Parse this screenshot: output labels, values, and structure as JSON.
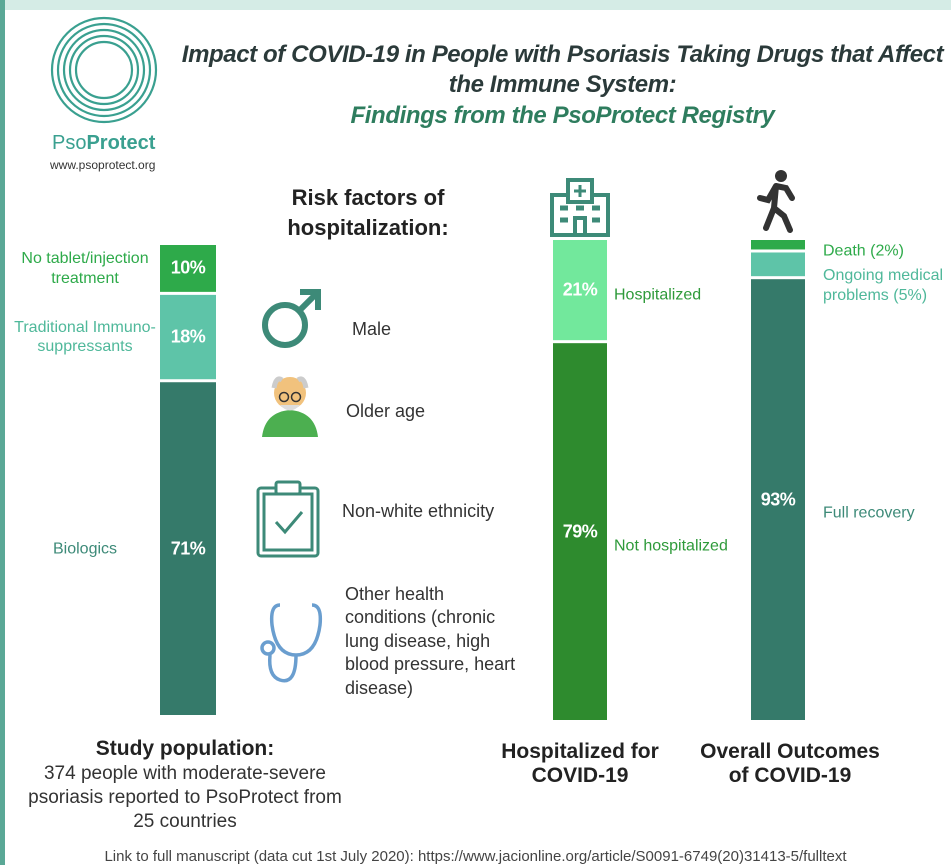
{
  "header": {
    "logo_name_light": "Pso",
    "logo_name_bold": "Protect",
    "url": "www.psoprotect.org",
    "title": "Impact of COVID-19 in People with Psoriasis Taking Drugs that Affect the Immune System:",
    "subtitle": "Findings from the PsoProtect Registry"
  },
  "risk_factors": {
    "title": "Risk factors of hospitalization:",
    "items": [
      "Male",
      "Older age",
      "Non-white ethnicity",
      "Other health conditions (chronic lung disease, high blood pressure, heart disease)"
    ]
  },
  "chart_data": [
    {
      "type": "stacked_bar",
      "title": "Study population:",
      "subtitle": "374 people with moderate-severe psoriasis reported to PsoProtect from 25 countries",
      "series": [
        {
          "name": "No tablet/injection treatment",
          "color": "#2eaa4a",
          "label_color": "#2eaa4a",
          "values": [
            10
          ],
          "value_labels": [
            "10%"
          ]
        },
        {
          "name": "Traditional Immuno-suppressants",
          "color": "#5ec4a8",
          "label_color": "#4fb89a",
          "values": [
            18
          ],
          "value_labels": [
            "18%"
          ]
        },
        {
          "name": "Biologics",
          "color": "#357a6a",
          "label_color": "#3d8a78",
          "values": [
            71
          ],
          "value_labels": [
            "71%"
          ]
        }
      ]
    },
    {
      "type": "stacked_bar",
      "title": "Hospitalized for COVID-19",
      "series": [
        {
          "name": "Hospitalized",
          "color": "#72e89c",
          "label_color": "#2e9a3a",
          "values": [
            21
          ],
          "value_labels": [
            "21%"
          ]
        },
        {
          "name": "Not hospitalized",
          "color": "#2e8b2e",
          "label_color": "#2e9a3a",
          "values": [
            79
          ],
          "value_labels": [
            "79%"
          ]
        }
      ]
    },
    {
      "type": "stacked_bar",
      "title": "Overall Outcomes of COVID-19",
      "series": [
        {
          "name": "Death (2%)",
          "color": "#2eaa4a",
          "label_color": "#2eaa4a",
          "values": [
            2
          ]
        },
        {
          "name": "Ongoing medical problems (5%)",
          "color": "#5ec4a8",
          "label_color": "#4fb89a",
          "values": [
            5
          ]
        },
        {
          "name": "Full recovery",
          "color": "#357a6a",
          "label_color": "#3d8a78",
          "values": [
            93
          ],
          "value_labels": [
            "93%"
          ]
        }
      ]
    }
  ],
  "footer": "Link to full manuscript (data cut 1st July 2020): https://www.jacionline.org/article/S0091-6749(20)31413-5/fulltext"
}
